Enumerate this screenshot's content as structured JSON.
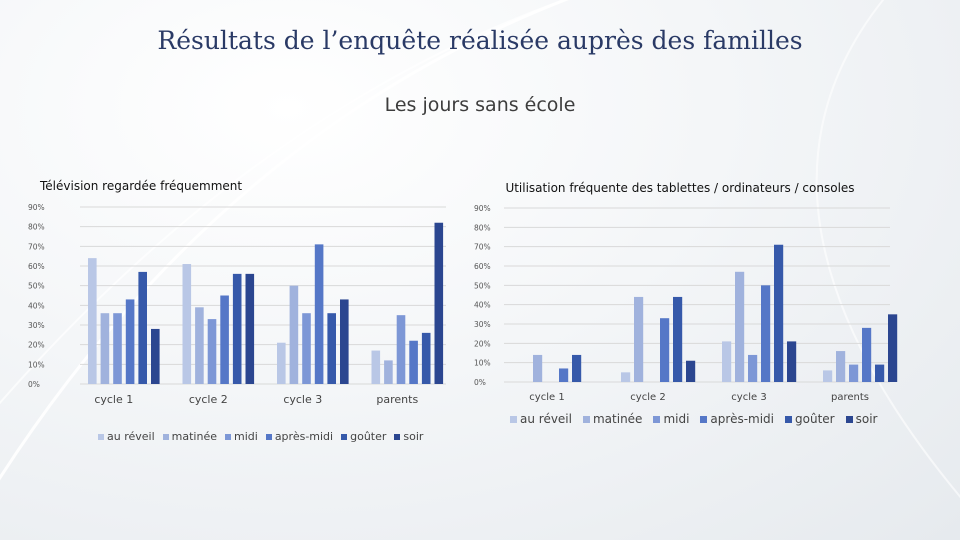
{
  "slide": {
    "title": "Résultats de l’enquête réalisée auprès des familles",
    "subtitle": "Les jours sans école"
  },
  "colors": [
    "#b9c7e6",
    "#a0b2dd",
    "#7d97d6",
    "#5577c7",
    "#3659aa",
    "#2b4690"
  ],
  "chart_data": [
    {
      "type": "bar",
      "title": "Télévision regardée fréquemment",
      "categories": [
        "cycle 1",
        "cycle 2",
        "cycle 3",
        "parents"
      ],
      "ylim": [
        0,
        90
      ],
      "yticks": [
        "0%",
        "10%",
        "20%",
        "30%",
        "40%",
        "50%",
        "60%",
        "70%",
        "80%",
        "90%"
      ],
      "grid": true,
      "legend": "bottom",
      "series": [
        {
          "name": "au réveil",
          "values": [
            64,
            61,
            21,
            17
          ]
        },
        {
          "name": "matinée",
          "values": [
            36,
            39,
            50,
            12
          ]
        },
        {
          "name": "midi",
          "values": [
            36,
            33,
            36,
            35
          ]
        },
        {
          "name": "après-midi",
          "values": [
            43,
            45,
            71,
            22
          ]
        },
        {
          "name": "goûter",
          "values": [
            57,
            56,
            36,
            26
          ]
        },
        {
          "name": "soir",
          "values": [
            28,
            56,
            43,
            82
          ]
        }
      ]
    },
    {
      "type": "bar",
      "title": "Utilisation fréquente des tablettes / ordinateurs / consoles",
      "categories": [
        "cycle 1",
        "cycle 2",
        "cycle 3",
        "parents"
      ],
      "ylim": [
        0,
        90
      ],
      "yticks": [
        "0%",
        "10%",
        "20%",
        "30%",
        "40%",
        "50%",
        "60%",
        "70%",
        "80%",
        "90%"
      ],
      "grid": true,
      "legend": "bottom",
      "series": [
        {
          "name": "au réveil",
          "values": [
            0,
            5,
            21,
            6
          ]
        },
        {
          "name": "matinée",
          "values": [
            14,
            44,
            57,
            16
          ]
        },
        {
          "name": "midi",
          "values": [
            0,
            0,
            14,
            9
          ]
        },
        {
          "name": "après-midi",
          "values": [
            7,
            33,
            50,
            28
          ]
        },
        {
          "name": "goûter",
          "values": [
            14,
            44,
            71,
            9
          ]
        },
        {
          "name": "soir",
          "values": [
            0,
            11,
            21,
            35
          ]
        }
      ]
    }
  ]
}
